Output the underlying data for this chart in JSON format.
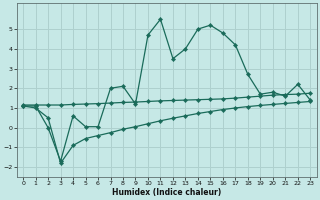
{
  "xlabel": "Humidex (Indice chaleur)",
  "background_color": "#c6e8e6",
  "grid_color": "#aed0ce",
  "line_color": "#1a6b5a",
  "x_data": [
    0,
    1,
    2,
    3,
    4,
    5,
    6,
    7,
    8,
    9,
    10,
    11,
    12,
    13,
    14,
    15,
    16,
    17,
    18,
    19,
    20,
    21,
    22,
    23
  ],
  "y_main": [
    1.1,
    1.1,
    0.0,
    -1.7,
    0.6,
    0.05,
    0.05,
    2.0,
    2.1,
    1.2,
    4.7,
    5.5,
    3.5,
    4.0,
    5.0,
    5.2,
    4.8,
    4.2,
    2.7,
    1.7,
    1.8,
    1.6,
    2.2,
    1.4
  ],
  "y_upper": [
    1.15,
    1.15,
    1.15,
    1.15,
    1.18,
    1.2,
    1.22,
    1.25,
    1.28,
    1.3,
    1.33,
    1.36,
    1.38,
    1.4,
    1.42,
    1.44,
    1.46,
    1.5,
    1.55,
    1.6,
    1.65,
    1.68,
    1.7,
    1.75
  ],
  "y_lower": [
    1.1,
    1.0,
    0.5,
    -1.8,
    -0.9,
    -0.55,
    -0.4,
    -0.25,
    -0.08,
    0.05,
    0.2,
    0.35,
    0.48,
    0.6,
    0.72,
    0.82,
    0.92,
    1.0,
    1.07,
    1.13,
    1.18,
    1.23,
    1.28,
    1.33
  ],
  "ylim": [
    -2.5,
    6.3
  ],
  "xlim": [
    -0.5,
    23.5
  ],
  "yticks": [
    -2,
    -1,
    0,
    1,
    2,
    3,
    4,
    5
  ],
  "xticks": [
    0,
    1,
    2,
    3,
    4,
    5,
    6,
    7,
    8,
    9,
    10,
    11,
    12,
    13,
    14,
    15,
    16,
    17,
    18,
    19,
    20,
    21,
    22,
    23
  ]
}
